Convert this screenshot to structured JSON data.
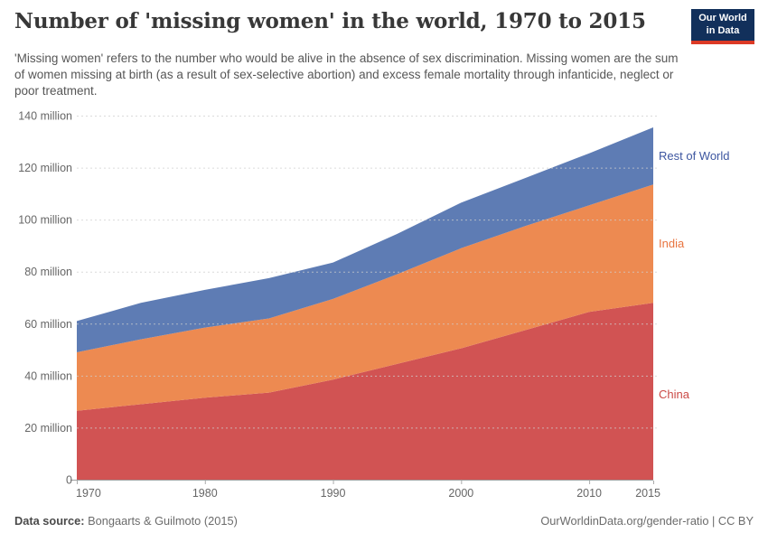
{
  "header": {
    "title": "Number of 'missing women' in the world, 1970 to 2015",
    "subtitle": "'Missing women' refers to the number who would be alive in the absence of sex discrimination. Missing women are the sum of women missing at birth (as a result of sex-selective abortion) and excess female mortality through infanticide, neglect or poor treatment.",
    "logo": {
      "line1": "Our World",
      "line2": "in Data",
      "bg_color": "#12305b",
      "bar_color": "#dc3a26"
    }
  },
  "chart_data": {
    "type": "area",
    "stacked": true,
    "title": "Number of 'missing women' in the world, 1970 to 2015",
    "xlabel": "",
    "ylabel": "",
    "x": [
      1970,
      1975,
      1980,
      1985,
      1990,
      1995,
      2000,
      2005,
      2010,
      2015
    ],
    "series": [
      {
        "name": "China",
        "color": "#d15353",
        "label_color": "#cb4a46",
        "values": [
          26.5,
          29,
          31.5,
          33.5,
          38.5,
          44.5,
          50.5,
          57.5,
          64.5,
          68
        ]
      },
      {
        "name": "India",
        "color": "#ed8a51",
        "label_color": "#e8743f",
        "values": [
          22.5,
          25,
          27,
          28.5,
          31,
          34.5,
          38.5,
          40,
          41,
          45.5
        ]
      },
      {
        "name": "Rest of World",
        "color": "#5e7cb4",
        "label_color": "#3d56a0",
        "values": [
          12,
          14,
          14.5,
          15.5,
          14,
          15.5,
          17.5,
          18.5,
          20,
          22
        ]
      }
    ],
    "stacked_totals": [
      61,
      68,
      73,
      77.5,
      83.5,
      94.5,
      106.5,
      116,
      125.5,
      135.5
    ],
    "xlim": [
      1970,
      2015
    ],
    "ylim": [
      0,
      140
    ],
    "y_ticks": [
      {
        "v": 0,
        "label": "0"
      },
      {
        "v": 20,
        "label": "20 million"
      },
      {
        "v": 40,
        "label": "40 million"
      },
      {
        "v": 60,
        "label": "60 million"
      },
      {
        "v": 80,
        "label": "80 million"
      },
      {
        "v": 100,
        "label": "100 million"
      },
      {
        "v": 120,
        "label": "120 million"
      },
      {
        "v": 140,
        "label": "140 million"
      }
    ],
    "x_ticks": [
      {
        "v": 1970,
        "label": "1970"
      },
      {
        "v": 1980,
        "label": "1980"
      },
      {
        "v": 1990,
        "label": "1990"
      },
      {
        "v": 2000,
        "label": "2000"
      },
      {
        "v": 2010,
        "label": "2010"
      },
      {
        "v": 2015,
        "label": "2015"
      }
    ],
    "grid": "horizontal dashed",
    "legend_position": "right edge labels"
  },
  "footer": {
    "datasource_label": "Data source:",
    "datasource_value": "Bongaarts & Guilmoto (2015)",
    "credit_link": "OurWorldinData.org/gender-ratio",
    "credit_separator": " | ",
    "credit_license": "CC BY"
  }
}
